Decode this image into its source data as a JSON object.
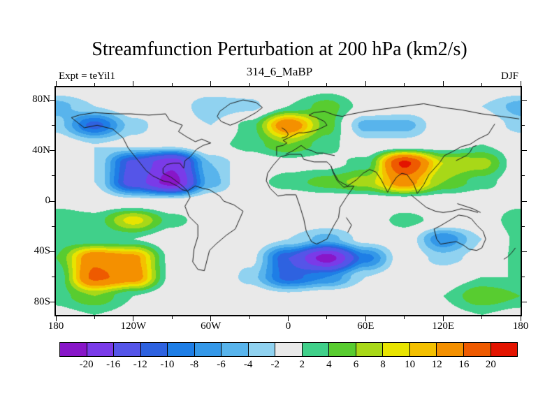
{
  "title": "Streamfunction Perturbation at 200 hPa (km2/s)",
  "subtitle": "314_6_MaBP",
  "annotations": {
    "left": "Expt = teYil1",
    "right": "DJF"
  },
  "colors": {
    "background": "#ffffff",
    "plot_background": "#e9e9e9",
    "coastline": "#1a1a1a",
    "frame": "#000000"
  },
  "axes": {
    "x": {
      "labels": [
        {
          "value": -180,
          "text": "180"
        },
        {
          "value": -120,
          "text": "120W"
        },
        {
          "value": -60,
          "text": "60W"
        },
        {
          "value": 0,
          "text": "0"
        },
        {
          "value": 60,
          "text": "60E"
        },
        {
          "value": 120,
          "text": "120E"
        },
        {
          "value": 180,
          "text": "180"
        }
      ],
      "minor": [
        -150,
        -90,
        -30,
        30,
        90,
        150
      ]
    },
    "y": {
      "labels": [
        {
          "value": 80,
          "text": "80N"
        },
        {
          "value": 40,
          "text": "40N"
        },
        {
          "value": 0,
          "text": "0"
        },
        {
          "value": -40,
          "text": "40S"
        },
        {
          "value": -80,
          "text": "80S"
        }
      ],
      "minor": [
        60,
        20,
        -20,
        -60
      ]
    }
  },
  "colorbar": {
    "labels": [
      "-20",
      "-16",
      "-12",
      "-10",
      "-8",
      "-6",
      "-4",
      "-2",
      "2",
      "4",
      "6",
      "8",
      "10",
      "12",
      "16",
      "20"
    ],
    "colors": [
      "#8816c8",
      "#7a3be8",
      "#5555e8",
      "#2e62e0",
      "#1e7ee6",
      "#3498e8",
      "#58b4ec",
      "#90d2f0",
      "#e9e9e9",
      "#40d08a",
      "#58cc30",
      "#a8d818",
      "#e8e400",
      "#f4c000",
      "#f49000",
      "#ee5a00",
      "#e31400"
    ]
  },
  "chart_data": {
    "type": "heatmap",
    "rendered_as": "filled contour map, cylindrical equidistant projection",
    "title": "Streamfunction Perturbation at 200 hPa (km2/s)",
    "subtitle": "314_6_MaBP",
    "experiment": "teYil1",
    "season": "DJF",
    "units": "km2/s",
    "lon_range": [
      -180,
      180
    ],
    "lat_range": [
      -90,
      90
    ],
    "contour_levels": [
      -20,
      -16,
      -12,
      -10,
      -8,
      -6,
      -4,
      -2,
      2,
      4,
      6,
      8,
      10,
      12,
      16,
      20
    ],
    "lons": [
      -180,
      -150,
      -120,
      -90,
      -60,
      -30,
      0,
      30,
      60,
      90,
      120,
      150,
      180
    ],
    "lats": [
      90,
      75,
      60,
      45,
      30,
      15,
      0,
      -15,
      -30,
      -45,
      -60,
      -75,
      -90
    ],
    "values": [
      [
        0,
        0,
        0,
        0,
        0,
        0,
        0,
        1,
        0,
        0,
        0,
        0,
        0
      ],
      [
        -5,
        -2,
        0,
        0,
        -4,
        -3,
        2,
        5,
        1,
        0,
        0,
        -2,
        -5
      ],
      [
        -3,
        -11,
        -3,
        0,
        -2,
        3,
        15,
        5,
        -5,
        -5,
        0,
        0,
        -3
      ],
      [
        0,
        -2,
        -1,
        -1,
        1,
        3,
        6,
        3,
        -1,
        -1,
        0,
        2,
        0
      ],
      [
        0,
        -2,
        -13,
        -19,
        -4,
        0,
        1,
        1,
        3,
        21,
        8,
        7,
        0
      ],
      [
        0,
        -2,
        -14,
        -22,
        -5,
        1,
        3,
        5,
        7,
        14,
        6,
        3,
        0
      ],
      [
        1,
        0,
        -1,
        -1,
        0,
        0,
        0,
        0,
        0,
        0,
        0,
        0,
        1
      ],
      [
        4,
        3,
        9,
        3,
        0,
        0,
        0,
        0,
        0,
        3,
        1,
        0,
        4
      ],
      [
        3,
        2,
        2,
        0,
        0,
        0,
        -2,
        -5,
        -1,
        0,
        -8,
        -2,
        3
      ],
      [
        4,
        15,
        13,
        1,
        -1,
        -1,
        -12,
        -22,
        -9,
        0,
        -3,
        -1,
        3
      ],
      [
        2,
        17,
        14,
        1,
        2,
        -3,
        -11,
        -8,
        -2,
        0,
        0,
        2,
        2
      ],
      [
        3,
        6,
        2,
        0,
        1,
        0,
        -1,
        0,
        0,
        0,
        2,
        6,
        4
      ],
      [
        1,
        2,
        1,
        0,
        0,
        0,
        0,
        0,
        0,
        0,
        1,
        2,
        1
      ]
    ]
  },
  "coastlines": [
    [
      [
        -168,
        66
      ],
      [
        -158,
        58
      ],
      [
        -148,
        60
      ],
      [
        -136,
        57
      ],
      [
        -128,
        50
      ],
      [
        -124,
        42
      ],
      [
        -117,
        33
      ],
      [
        -110,
        24
      ],
      [
        -105,
        20
      ],
      [
        -97,
        16
      ],
      [
        -92,
        15
      ],
      [
        -86,
        12
      ],
      [
        -82,
        9
      ],
      [
        -78,
        8
      ]
    ],
    [
      [
        -78,
        8
      ],
      [
        -82,
        12
      ],
      [
        -87,
        16
      ],
      [
        -91,
        19
      ],
      [
        -97,
        22
      ],
      [
        -97,
        26
      ],
      [
        -94,
        29
      ],
      [
        -89,
        30
      ],
      [
        -84,
        30
      ],
      [
        -81,
        26
      ],
      [
        -80,
        32
      ],
      [
        -76,
        35
      ],
      [
        -71,
        41
      ],
      [
        -66,
        44
      ],
      [
        -60,
        46
      ],
      [
        -67,
        49
      ],
      [
        -72,
        47
      ],
      [
        -79,
        51
      ],
      [
        -85,
        55
      ],
      [
        -82,
        60
      ],
      [
        -92,
        64
      ],
      [
        -95,
        69
      ],
      [
        -108,
        68
      ],
      [
        -122,
        69
      ],
      [
        -135,
        69
      ],
      [
        -150,
        70
      ],
      [
        -162,
        68
      ],
      [
        -168,
        66
      ]
    ],
    [
      [
        -45,
        60
      ],
      [
        -52,
        63
      ],
      [
        -55,
        67
      ],
      [
        -53,
        71
      ],
      [
        -45,
        77
      ],
      [
        -35,
        80
      ],
      [
        -25,
        78
      ],
      [
        -20,
        74
      ],
      [
        -25,
        70
      ],
      [
        -32,
        66
      ],
      [
        -40,
        62
      ],
      [
        -45,
        60
      ]
    ],
    [
      [
        -78,
        8
      ],
      [
        -76,
        3
      ],
      [
        -80,
        -4
      ],
      [
        -77,
        -12
      ],
      [
        -70,
        -19
      ],
      [
        -70,
        -28
      ],
      [
        -73,
        -38
      ],
      [
        -74,
        -48
      ],
      [
        -70,
        -54
      ],
      [
        -65,
        -55
      ],
      [
        -63,
        -47
      ],
      [
        -61,
        -39
      ],
      [
        -56,
        -34
      ],
      [
        -48,
        -27
      ],
      [
        -41,
        -22
      ],
      [
        -38,
        -15
      ],
      [
        -35,
        -8
      ],
      [
        -42,
        -3
      ],
      [
        -50,
        0
      ],
      [
        -53,
        4
      ],
      [
        -61,
        9
      ],
      [
        -66,
        10
      ],
      [
        -72,
        12
      ],
      [
        -78,
        8
      ]
    ],
    [
      [
        -6,
        35
      ],
      [
        1,
        37
      ],
      [
        10,
        37
      ],
      [
        12,
        33
      ],
      [
        20,
        31
      ],
      [
        30,
        31
      ],
      [
        33,
        28
      ],
      [
        35,
        22
      ],
      [
        38,
        16
      ],
      [
        43,
        11
      ],
      [
        51,
        12
      ],
      [
        45,
        3
      ],
      [
        40,
        -5
      ],
      [
        39,
        -13
      ],
      [
        35,
        -20
      ],
      [
        30,
        -30
      ],
      [
        22,
        -34
      ],
      [
        18,
        -32
      ],
      [
        14,
        -24
      ],
      [
        12,
        -14
      ],
      [
        9,
        -4
      ],
      [
        6,
        5
      ],
      [
        -2,
        5
      ],
      [
        -8,
        4
      ],
      [
        -14,
        10
      ],
      [
        -17,
        16
      ],
      [
        -16,
        22
      ],
      [
        -12,
        28
      ],
      [
        -6,
        35
      ]
    ],
    [
      [
        -9,
        36
      ],
      [
        -9,
        43
      ],
      [
        -4,
        44
      ],
      [
        -1,
        46
      ],
      [
        -4,
        48
      ],
      [
        0,
        50
      ],
      [
        4,
        52
      ],
      [
        8,
        54
      ],
      [
        12,
        54
      ],
      [
        18,
        55
      ],
      [
        24,
        57
      ],
      [
        30,
        60
      ],
      [
        28,
        63
      ],
      [
        22,
        66
      ],
      [
        16,
        68
      ],
      [
        20,
        70
      ],
      [
        28,
        71
      ],
      [
        36,
        68
      ],
      [
        42,
        67
      ],
      [
        45,
        68
      ]
    ],
    [
      [
        -2,
        37
      ],
      [
        4,
        40
      ],
      [
        10,
        44
      ],
      [
        14,
        41
      ],
      [
        18,
        40
      ],
      [
        22,
        38
      ],
      [
        27,
        38
      ],
      [
        31,
        37
      ],
      [
        36,
        36
      ]
    ],
    [
      [
        -5,
        50
      ],
      [
        -1,
        51
      ],
      [
        0,
        53
      ],
      [
        -2,
        56
      ],
      [
        -5,
        58
      ]
    ],
    [
      [
        45,
        68
      ],
      [
        60,
        71
      ],
      [
        75,
        73
      ],
      [
        90,
        75
      ],
      [
        105,
        77
      ],
      [
        120,
        74
      ],
      [
        135,
        72
      ],
      [
        150,
        69
      ],
      [
        165,
        67
      ],
      [
        179,
        65
      ]
    ],
    [
      [
        160,
        61
      ],
      [
        155,
        53
      ],
      [
        147,
        49
      ],
      [
        141,
        45
      ],
      [
        134,
        43
      ],
      [
        127,
        39
      ],
      [
        121,
        36
      ],
      [
        117,
        30
      ],
      [
        109,
        21
      ],
      [
        105,
        13
      ],
      [
        100,
        6
      ]
    ],
    [
      [
        100,
        6
      ],
      [
        97,
        14
      ],
      [
        92,
        21
      ],
      [
        88,
        22
      ],
      [
        84,
        19
      ],
      [
        80,
        13
      ],
      [
        77,
        7
      ],
      [
        72,
        17
      ],
      [
        68,
        23
      ],
      [
        63,
        25
      ],
      [
        58,
        22
      ],
      [
        53,
        17
      ],
      [
        46,
        12
      ],
      [
        39,
        16
      ],
      [
        35,
        23
      ],
      [
        33,
        28
      ]
    ],
    [
      [
        95,
        5
      ],
      [
        101,
        0
      ],
      [
        107,
        -5
      ],
      [
        114,
        -8
      ],
      [
        120,
        -9
      ],
      [
        127,
        -8
      ],
      [
        134,
        -6
      ],
      [
        140,
        -7
      ],
      [
        147,
        -9
      ]
    ],
    [
      [
        130,
        32
      ],
      [
        134,
        34
      ],
      [
        138,
        36
      ],
      [
        141,
        39
      ],
      [
        143,
        43
      ],
      [
        146,
        44
      ]
    ],
    [
      [
        131,
        -2
      ],
      [
        137,
        -4
      ],
      [
        143,
        -6
      ],
      [
        149,
        -9
      ]
    ],
    [
      [
        113,
        -22
      ],
      [
        115,
        -30
      ],
      [
        118,
        -34
      ],
      [
        124,
        -33
      ],
      [
        130,
        -32
      ],
      [
        136,
        -35
      ],
      [
        140,
        -38
      ],
      [
        146,
        -39
      ],
      [
        150,
        -37
      ],
      [
        153,
        -30
      ],
      [
        151,
        -24
      ],
      [
        146,
        -19
      ],
      [
        142,
        -14
      ],
      [
        138,
        -12
      ],
      [
        132,
        -11
      ],
      [
        127,
        -14
      ],
      [
        122,
        -17
      ],
      [
        117,
        -20
      ],
      [
        113,
        -22
      ]
    ],
    [
      [
        45,
        -13
      ],
      [
        49,
        -19
      ],
      [
        46,
        -25
      ]
    ],
    [
      [
        167,
        -46
      ],
      [
        170,
        -44
      ],
      [
        173,
        -41
      ],
      [
        176,
        -37
      ]
    ]
  ]
}
